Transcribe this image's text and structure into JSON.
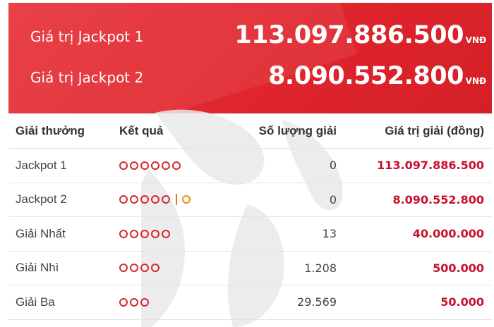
{
  "jackpots": [
    {
      "label": "Giá trị Jackpot 1",
      "value": "113.097.886.500",
      "unit": "VNĐ"
    },
    {
      "label": "Giá trị Jackpot 2",
      "value": "8.090.552.800",
      "unit": "VNĐ"
    }
  ],
  "table": {
    "headers": {
      "prize": "Giải thưởng",
      "result": "Kết quả",
      "count": "Số lượng giải",
      "value": "Giá trị giải (đồng)"
    },
    "rows": [
      {
        "name": "Jackpot 1",
        "red_dots": 6,
        "bonus_dot": false,
        "count": "0",
        "value": "113.097.886.500"
      },
      {
        "name": "Jackpot 2",
        "red_dots": 5,
        "bonus_dot": true,
        "count": "0",
        "value": "8.090.552.800"
      },
      {
        "name": "Giải Nhất",
        "red_dots": 5,
        "bonus_dot": false,
        "count": "13",
        "value": "40.000.000"
      },
      {
        "name": "Giải Nhì",
        "red_dots": 4,
        "bonus_dot": false,
        "count": "1.208",
        "value": "500.000"
      },
      {
        "name": "Giải Ba",
        "red_dots": 3,
        "bonus_dot": false,
        "count": "29.569",
        "value": "50.000"
      }
    ]
  },
  "colors": {
    "header_red": "#e0252d",
    "prize_red": "#c8102e",
    "dot_red": "#d7262e",
    "bonus_orange": "#f08a12"
  }
}
